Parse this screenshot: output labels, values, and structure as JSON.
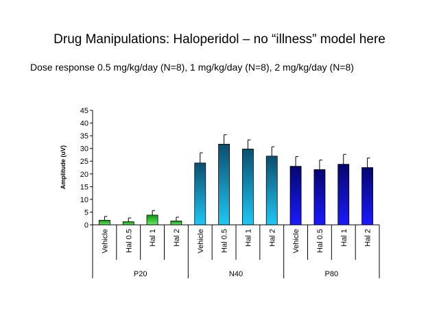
{
  "slide": {
    "title": "Drug Manipulations: Haloperidol – no “illness” model here",
    "subtitle": "Dose response 0.5 mg/kg/day (N=8), 1 mg/kg/day (N=8), 2 mg/kg/day (N=8)"
  },
  "chart_data": {
    "type": "bar",
    "ylabel": "Amplitude (uV)",
    "ylim": [
      0,
      45
    ],
    "yticks": [
      0,
      5,
      10,
      15,
      20,
      25,
      30,
      35,
      40,
      45
    ],
    "grid": false,
    "error_bars": true,
    "groups": [
      {
        "name": "P20",
        "colors": [
          "#0a9a0a",
          "#6ae86a"
        ],
        "bars": [
          {
            "label": "Vehicle",
            "value": 1.8,
            "error": 1.5
          },
          {
            "label": "Hal 0.5",
            "value": 1.2,
            "error": 1.5
          },
          {
            "label": "Hal 1",
            "value": 3.8,
            "error": 1.8
          },
          {
            "label": "Hal 2",
            "value": 1.5,
            "error": 1.5
          }
        ]
      },
      {
        "name": "N40",
        "colors": [
          "#0b4e6e",
          "#1ec8f5"
        ],
        "bars": [
          {
            "label": "Vehicle",
            "value": 24.3,
            "error": 4.0
          },
          {
            "label": "Hal 0.5",
            "value": 31.7,
            "error": 3.7
          },
          {
            "label": "Hal 1",
            "value": 29.8,
            "error": 3.6
          },
          {
            "label": "Hal 2",
            "value": 27.0,
            "error": 3.7
          }
        ]
      },
      {
        "name": "P80",
        "colors": [
          "#06066e",
          "#1a1aff"
        ],
        "bars": [
          {
            "label": "Vehicle",
            "value": 23.0,
            "error": 3.8
          },
          {
            "label": "Hal 0.5",
            "value": 21.7,
            "error": 3.8
          },
          {
            "label": "Hal 1",
            "value": 23.8,
            "error": 3.9
          },
          {
            "label": "Hal 2",
            "value": 22.5,
            "error": 3.8
          }
        ]
      }
    ]
  }
}
